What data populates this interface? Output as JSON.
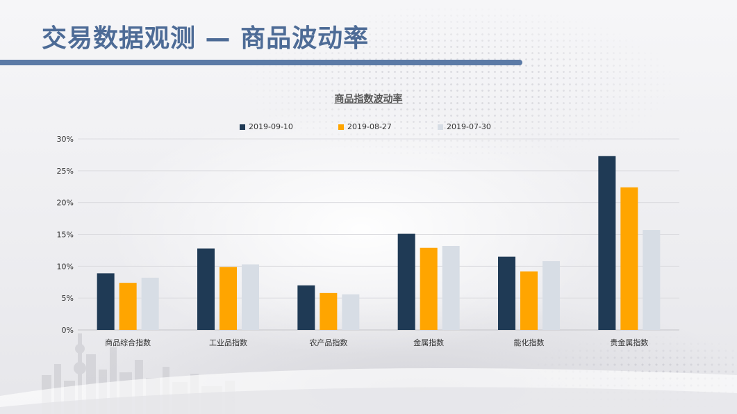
{
  "page": {
    "title": "交易数据观测 — 商品波动率"
  },
  "colors": {
    "series1": "#1f3a55",
    "series2": "#ffa500",
    "series3": "#d7dde5",
    "title": "#4d6b96",
    "accent_bar": "#5b7aa6"
  },
  "chart_data": {
    "type": "bar",
    "title": "商品指数波动率",
    "categories": [
      "商品综合指数",
      "工业品指数",
      "农产品指数",
      "金属指数",
      "能化指数",
      "贵金属指数"
    ],
    "series": [
      {
        "name": "2019-09-10",
        "color": "#1f3a55",
        "values": [
          8.9,
          12.8,
          7.0,
          15.1,
          11.5,
          27.3
        ]
      },
      {
        "name": "2019-08-27",
        "color": "#ffa500",
        "values": [
          7.4,
          9.9,
          5.8,
          12.9,
          9.2,
          22.4
        ]
      },
      {
        "name": "2019-07-30",
        "color": "#d7dde5",
        "values": [
          8.2,
          10.3,
          5.6,
          13.2,
          10.8,
          15.7
        ]
      }
    ],
    "yticks": [
      "0%",
      "5%",
      "10%",
      "15%",
      "20%",
      "25%",
      "30%"
    ],
    "ylim": [
      0,
      30
    ],
    "xlabel": "",
    "ylabel": "",
    "grid": true,
    "legend_position": "top"
  }
}
